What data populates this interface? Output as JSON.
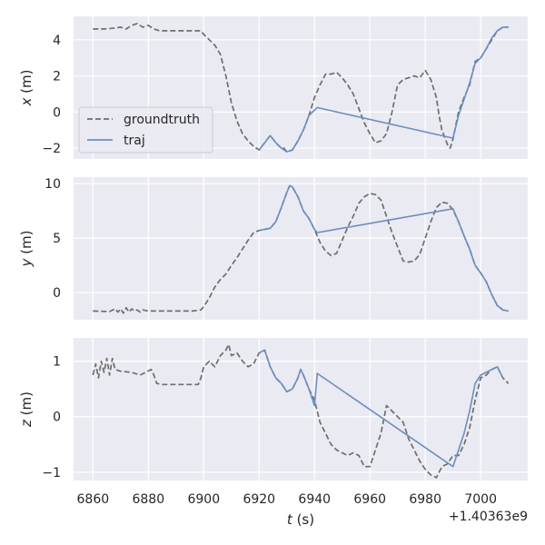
{
  "chart_data": {
    "type": "line",
    "subplots": [
      {
        "ylabel": "x (m)",
        "ylabel_var": "x",
        "ylabel_unit": " (m)",
        "ylim": [
          -2.6,
          5.3
        ],
        "yticks": [
          -2,
          0,
          2,
          4
        ],
        "series": [
          {
            "name": "groundtruth",
            "style": "dashed",
            "x": [
              6860,
              6864,
              6868,
              6870,
              6872,
              6874,
              6876,
              6878,
              6880,
              6882,
              6884,
              6890,
              6895,
              6899,
              6900,
              6902,
              6904,
              6906,
              6908,
              6910,
              6912,
              6914,
              6916,
              6918,
              6920,
              6922,
              6924,
              6926,
              6928,
              6929,
              6930,
              6932,
              6934,
              6936,
              6938,
              6940,
              6942,
              6944,
              6946,
              6948,
              6950,
              6952,
              6954,
              6956,
              6958,
              6960,
              6962,
              6964,
              6966,
              6968,
              6970,
              6972,
              6974,
              6976,
              6978,
              6980,
              6982,
              6984,
              6985,
              6986,
              6988,
              6989,
              6990,
              6992,
              6994,
              6996,
              6998,
              7000,
              7002,
              7004,
              7006,
              7008,
              7010
            ],
            "values": [
              4.6,
              4.6,
              4.65,
              4.7,
              4.6,
              4.8,
              4.9,
              4.7,
              4.8,
              4.6,
              4.5,
              4.5,
              4.5,
              4.5,
              4.3,
              4.0,
              3.7,
              3.2,
              2.0,
              0.5,
              -0.5,
              -1.2,
              -1.6,
              -1.9,
              -2.1,
              -1.7,
              -1.3,
              -1.7,
              -2.0,
              -2.0,
              -2.2,
              -2.1,
              -1.6,
              -1.0,
              -0.2,
              0.8,
              1.5,
              2.1,
              2.1,
              2.2,
              1.9,
              1.5,
              1.0,
              0.2,
              -0.6,
              -1.2,
              -1.7,
              -1.6,
              -1.2,
              0.0,
              1.5,
              1.8,
              1.9,
              2.0,
              1.9,
              2.3,
              1.8,
              0.8,
              -0.2,
              -1.0,
              -1.8,
              -2.0,
              -1.5,
              0.0,
              0.8,
              1.5,
              2.8,
              3.0,
              3.5,
              4.0,
              4.5,
              4.7,
              4.7
            ]
          },
          {
            "name": "traj",
            "style": "solid",
            "x": [
              6920,
              6922,
              6924,
              6926,
              6928,
              6930,
              6932,
              6934,
              6936,
              6938,
              6940,
              6941,
              6990,
              6992,
              6994,
              6996,
              6998,
              7000,
              7002,
              7004,
              7006,
              7008,
              7010
            ],
            "values": [
              -2.1,
              -1.7,
              -1.3,
              -1.7,
              -2.0,
              -2.2,
              -2.1,
              -1.6,
              -1.0,
              -0.2,
              0.1,
              0.25,
              -1.45,
              -0.2,
              0.7,
              1.6,
              2.7,
              3.0,
              3.5,
              4.1,
              4.5,
              4.7,
              4.7
            ]
          }
        ]
      },
      {
        "ylabel": "y (m)",
        "ylabel_var": "y",
        "ylabel_unit": " (m)",
        "ylim": [
          -2.5,
          10.6
        ],
        "yticks": [
          0,
          5,
          10
        ],
        "series": [
          {
            "name": "groundtruth",
            "style": "dashed",
            "x": [
              6860,
              6866,
              6868,
              6869,
              6870,
              6871,
              6872,
              6873,
              6874,
              6875,
              6876,
              6877,
              6878,
              6880,
              6884,
              6890,
              6896,
              6899,
              6900,
              6902,
              6904,
              6906,
              6908,
              6910,
              6912,
              6914,
              6916,
              6918,
              6920,
              6922,
              6924,
              6926,
              6928,
              6930,
              6931,
              6932,
              6934,
              6936,
              6938,
              6940,
              6942,
              6944,
              6946,
              6948,
              6950,
              6952,
              6954,
              6956,
              6958,
              6960,
              6962,
              6964,
              6966,
              6968,
              6970,
              6972,
              6974,
              6976,
              6978,
              6980,
              6982,
              6984,
              6986,
              6988,
              6990,
              6992,
              6994,
              6996,
              6998,
              7000,
              7002,
              7004,
              7006,
              7008,
              7010
            ],
            "values": [
              -1.7,
              -1.75,
              -1.5,
              -1.8,
              -1.5,
              -1.9,
              -1.4,
              -1.8,
              -1.5,
              -1.7,
              -1.6,
              -1.8,
              -1.6,
              -1.7,
              -1.7,
              -1.7,
              -1.7,
              -1.6,
              -1.3,
              -0.5,
              0.5,
              1.2,
              1.7,
              2.5,
              3.2,
              4.0,
              4.8,
              5.5,
              5.7,
              5.8,
              5.9,
              6.5,
              7.8,
              9.2,
              9.8,
              9.7,
              8.8,
              7.5,
              6.8,
              5.8,
              4.6,
              3.8,
              3.4,
              3.6,
              4.8,
              6.0,
              7.0,
              8.2,
              8.8,
              9.1,
              9.0,
              8.5,
              7.0,
              5.5,
              4.2,
              2.9,
              2.8,
              2.9,
              3.5,
              5.0,
              6.5,
              7.8,
              8.3,
              8.2,
              7.6,
              6.5,
              5.2,
              4.0,
              2.5,
              1.8,
              1.0,
              -0.2,
              -1.2,
              -1.6,
              -1.7
            ]
          },
          {
            "name": "traj",
            "style": "solid",
            "x": [
              6920,
              6922,
              6924,
              6926,
              6928,
              6930,
              6931,
              6932,
              6934,
              6936,
              6938,
              6940,
              6941,
              6990,
              6992,
              6994,
              6996,
              6998,
              7000,
              7002,
              7004,
              7006,
              7008,
              7010
            ],
            "values": [
              5.7,
              5.8,
              5.9,
              6.5,
              7.8,
              9.2,
              9.8,
              9.7,
              8.8,
              7.5,
              6.8,
              5.8,
              5.5,
              7.7,
              6.5,
              5.2,
              4.0,
              2.5,
              1.8,
              1.0,
              -0.2,
              -1.2,
              -1.6,
              -1.7
            ]
          }
        ]
      },
      {
        "ylabel": "z (m)",
        "ylabel_var": "z",
        "ylabel_unit": " (m)",
        "ylim": [
          -1.15,
          1.42
        ],
        "yticks": [
          -1,
          0,
          1
        ],
        "series": [
          {
            "name": "groundtruth",
            "style": "dashed",
            "x": [
              6860,
              6861,
              6862,
              6863,
              6864,
              6865,
              6866,
              6867,
              6868,
              6870,
              6874,
              6877,
              6879,
              6881,
              6882,
              6883,
              6885,
              6890,
              6896,
              6898,
              6899,
              6900,
              6902,
              6904,
              6906,
              6908,
              6909,
              6910,
              6912,
              6914,
              6916,
              6918,
              6920,
              6922,
              6924,
              6926,
              6928,
              6930,
              6932,
              6934,
              6935,
              6936,
              6938,
              6940,
              6942,
              6944,
              6946,
              6948,
              6950,
              6952,
              6954,
              6956,
              6958,
              6960,
              6962,
              6964,
              6966,
              6968,
              6970,
              6972,
              6974,
              6976,
              6978,
              6980,
              6982,
              6984,
              6986,
              6988,
              6990,
              6992,
              6994,
              6996,
              6998,
              7000,
              7002,
              7004,
              7006,
              7008,
              7010
            ],
            "values": [
              0.75,
              0.95,
              0.7,
              1.0,
              0.8,
              1.05,
              0.75,
              1.05,
              0.85,
              0.82,
              0.8,
              0.75,
              0.8,
              0.85,
              0.75,
              0.6,
              0.58,
              0.58,
              0.58,
              0.58,
              0.7,
              0.9,
              1.0,
              0.9,
              1.1,
              1.2,
              1.3,
              1.1,
              1.15,
              1.0,
              0.9,
              0.95,
              1.15,
              1.2,
              0.9,
              0.7,
              0.6,
              0.45,
              0.5,
              0.7,
              0.85,
              0.75,
              0.5,
              0.3,
              -0.1,
              -0.3,
              -0.5,
              -0.6,
              -0.65,
              -0.7,
              -0.65,
              -0.7,
              -0.9,
              -0.9,
              -0.6,
              -0.3,
              0.2,
              0.1,
              0.0,
              -0.1,
              -0.4,
              -0.6,
              -0.8,
              -0.95,
              -1.05,
              -1.1,
              -0.9,
              -0.85,
              -0.7,
              -0.7,
              -0.5,
              -0.2,
              0.3,
              0.7,
              0.75,
              0.85,
              0.9,
              0.7,
              0.6
            ]
          },
          {
            "name": "traj",
            "style": "solid",
            "x": [
              6920,
              6922,
              6924,
              6926,
              6928,
              6930,
              6932,
              6934,
              6935,
              6936,
              6938,
              6940,
              6941,
              6990,
              6992,
              6994,
              6996,
              6998,
              7000,
              7002,
              7004,
              7006,
              7008
            ],
            "values": [
              1.15,
              1.2,
              0.9,
              0.7,
              0.6,
              0.45,
              0.5,
              0.7,
              0.85,
              0.75,
              0.5,
              0.2,
              0.78,
              -0.9,
              -0.6,
              -0.3,
              0.1,
              0.6,
              0.75,
              0.8,
              0.85,
              0.9,
              0.7
            ]
          }
        ]
      }
    ],
    "xlabel": "t (s)",
    "xlabel_var": "t",
    "xlabel_unit": " (s)",
    "xlim": [
      6853,
      7017
    ],
    "xticks": [
      6860,
      6880,
      6900,
      6920,
      6940,
      6960,
      6980,
      7000
    ],
    "x_offset_text": "+1.40363e9",
    "legend": {
      "placement": "lower-left",
      "entries": [
        "groundtruth",
        "traj"
      ]
    },
    "grid": true,
    "colors": {
      "background": "#eaeaf2",
      "grid": "#ffffff",
      "groundtruth": "#6e6e6e",
      "traj": "#6c8ebf"
    }
  }
}
